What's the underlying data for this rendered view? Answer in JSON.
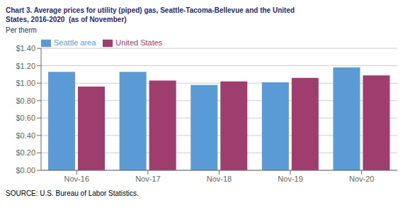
{
  "chart_data": {
    "type": "bar",
    "title": [
      "Chart 3. Average prices for utility (piped) gas, Seattle-Tacoma-Bellevue and the United",
      "States, 2016-2020  (as of November)"
    ],
    "ylabel": "Per therm",
    "annotations": [
      "SOURCE: U.S. Bureau of Labor Statistics."
    ],
    "categories": [
      "Nov-16",
      "Nov-17",
      "Nov-18",
      "Nov-19",
      "Nov-20"
    ],
    "series": [
      {
        "name": "Seattle area",
        "color": "#5B9BD5",
        "values": [
          1.13,
          1.13,
          0.98,
          1.01,
          1.18
        ]
      },
      {
        "name": "United States",
        "color": "#9E3D6E",
        "values": [
          0.96,
          1.03,
          1.02,
          1.06,
          1.09
        ]
      }
    ],
    "ylim": [
      0,
      1.4
    ],
    "yticks": [
      {
        "value": 0,
        "label": "$0.00"
      },
      {
        "value": 0.2,
        "label": "$0.20"
      },
      {
        "value": 0.4,
        "label": "$0.40"
      },
      {
        "value": 0.6,
        "label": "$0.60"
      },
      {
        "value": 0.8,
        "label": "$0.80"
      },
      {
        "value": 1.0,
        "label": "$1.00"
      },
      {
        "value": 1.2,
        "label": "$1.20"
      },
      {
        "value": 1.4,
        "label": "$1.40"
      }
    ],
    "grid": true,
    "legend": "upper left"
  }
}
